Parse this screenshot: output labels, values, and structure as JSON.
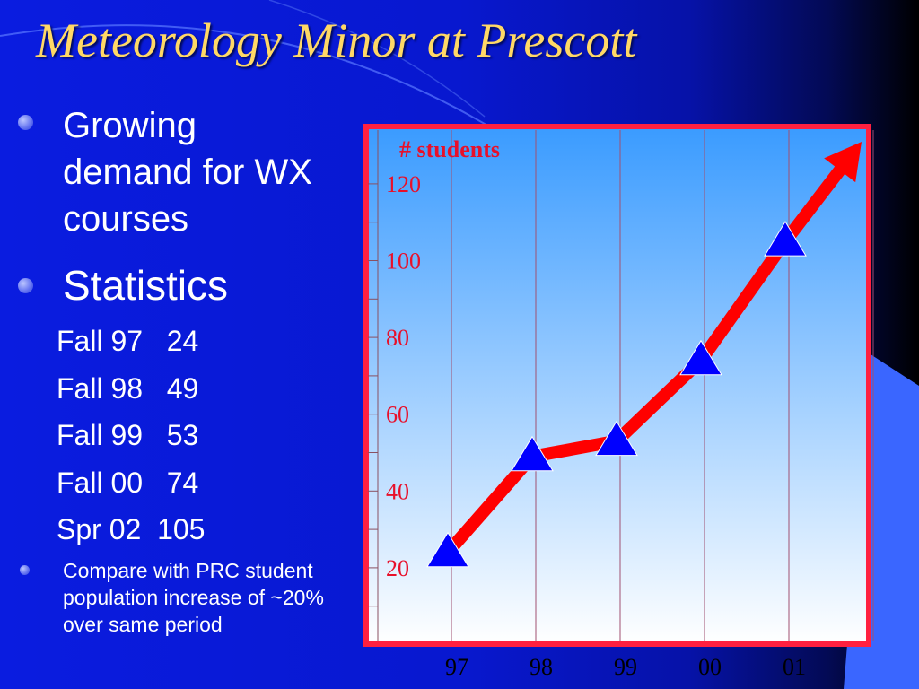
{
  "slide": {
    "title": "Meteorology Minor at Prescott",
    "bullets": [
      {
        "text": "Growing demand for WX courses"
      },
      {
        "text": "Statistics"
      }
    ],
    "stats": [
      {
        "label": "Fall 97",
        "value": "24"
      },
      {
        "label": "Fall 98",
        "value": "49"
      },
      {
        "label": "Fall 99",
        "value": "53"
      },
      {
        "label": "Fall 00",
        "value": "74"
      },
      {
        "label": "Spr 02",
        "value": "105"
      }
    ],
    "compare_note": "Compare with PRC student population increase of ~20% over same period"
  },
  "chart_data": {
    "type": "line",
    "title": "",
    "ylabel": "# students",
    "xlabel": "",
    "categories": [
      "97",
      "98",
      "99",
      "00",
      "01"
    ],
    "series": [
      {
        "values": [
          24,
          49,
          53,
          74,
          105
        ]
      }
    ],
    "ylim": [
      0,
      130
    ],
    "yticks": [
      20,
      40,
      60,
      80,
      100,
      120
    ],
    "grid": "vertical",
    "colors": {
      "line": "#ff0000",
      "marker": "#0000ff",
      "frame": "#ff2040",
      "label": "#e8102a"
    }
  }
}
